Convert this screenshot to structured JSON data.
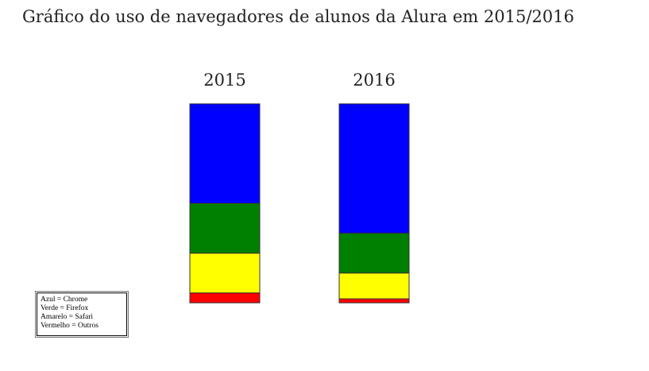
{
  "title": "Gráfico do uso de navegadores de alunos da Alura em 2015/2016",
  "chart_data": {
    "type": "bar",
    "stacked": true,
    "categories": [
      "2015",
      "2016"
    ],
    "series": [
      {
        "name": "Chrome",
        "color": "#0000ff",
        "values": [
          50,
          65
        ]
      },
      {
        "name": "Firefox",
        "color": "#008000",
        "values": [
          25,
          20
        ]
      },
      {
        "name": "Safari",
        "color": "#ffff00",
        "values": [
          20,
          13
        ]
      },
      {
        "name": "Outros",
        "color": "#ff0000",
        "values": [
          5,
          2
        ]
      }
    ],
    "ylim": [
      0,
      100
    ],
    "grid": false,
    "legend_position": "bottom-left"
  },
  "legend": [
    "Azul = Chrome",
    "Verde = Firefox",
    "Amarelo = Safari",
    "Vermelho = Outros"
  ]
}
